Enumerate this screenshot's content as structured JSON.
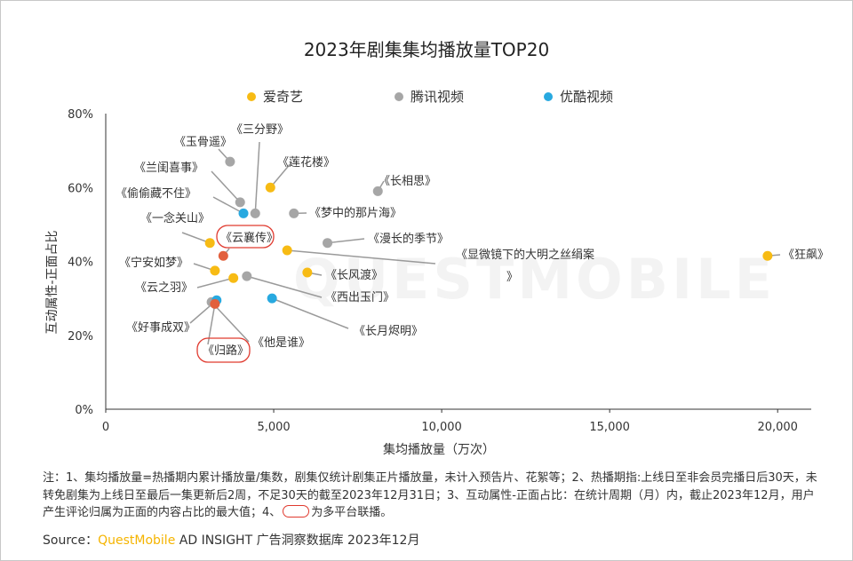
{
  "chart_data": {
    "type": "scatter",
    "title": "2023年剧集集均播放量TOP20",
    "xlabel": "集均播放量（万次）",
    "ylabel": "互动属性-正面占比",
    "xlim": [
      0,
      21000
    ],
    "ylim": [
      0,
      80
    ],
    "x_ticks": [
      "0",
      "5,000",
      "10,000",
      "15,000",
      "20,000"
    ],
    "y_ticks": [
      "0%",
      "20%",
      "40%",
      "60%",
      "80%"
    ],
    "legend_position": "top",
    "series": [
      {
        "name": "爱奇艺",
        "color": "#f7bb14",
        "points": [
          {
            "label": "《莲花楼》",
            "x": 4900,
            "y": 60
          },
          {
            "label": "《一念关山》",
            "x": 3100,
            "y": 45
          },
          {
            "label": "《宁安如梦》",
            "x": 3250,
            "y": 37.5
          },
          {
            "label": "《云之羽》",
            "x": 3800,
            "y": 35.5
          },
          {
            "label": "《显微镜下的大明之丝绢案》",
            "x": 5400,
            "y": 43
          },
          {
            "label": "《长风渡》",
            "x": 6000,
            "y": 37
          },
          {
            "label": "《狂飙》",
            "x": 19700,
            "y": 41.5
          }
        ]
      },
      {
        "name": "腾讯视频",
        "color": "#a6a6a6",
        "points": [
          {
            "label": "《玉骨遥》",
            "x": 3700,
            "y": 67
          },
          {
            "label": "《兰闺喜事》",
            "x": 4000,
            "y": 56
          },
          {
            "label": "《三分野》",
            "x": 4450,
            "y": 53
          },
          {
            "label": "《梦中的那片海》",
            "x": 5600,
            "y": 53
          },
          {
            "label": "《长相思》",
            "x": 8100,
            "y": 59
          },
          {
            "label": "《漫长的季节》",
            "x": 6600,
            "y": 45
          },
          {
            "label": "《西出玉门》",
            "x": 4200,
            "y": 36
          },
          {
            "label": "《他是谁》",
            "x": 3150,
            "y": 29
          }
        ]
      },
      {
        "name": "优酷视频",
        "color": "#28a9e0",
        "points": [
          {
            "label": "《偷偷藏不住》",
            "x": 4100,
            "y": 53
          },
          {
            "label": "《长月烬明》",
            "x": 4950,
            "y": 30
          },
          {
            "label": "《好事成双》",
            "x": 3300,
            "y": 29.5
          }
        ]
      },
      {
        "name": "多平台联播",
        "color": "#e2603d",
        "points": [
          {
            "label": "《云襄传》",
            "x": 3500,
            "y": 41.5
          },
          {
            "label": "《归路》",
            "x": 3250,
            "y": 28.5
          }
        ]
      }
    ],
    "legend": [
      "爱奇艺",
      "腾讯视频",
      "优酷视频"
    ]
  },
  "note": {
    "text": "注：1、集均播放量=热播期内累计播放量/集数，剧集仅统计剧集正片播放量，未计入预告片、花絮等；2、热播期指:上线日至非会员完播日后30天，未转免剧集为上线日至最后一集更新后2周，不足30天的截至2023年12月31日；3、互动属性-正面占比：在统计周期（月）内，截止2023年12月，用户产生评论归属为正面的内容占比的最大值；4、",
    "suffix": "为多平台联播。"
  },
  "source": {
    "prefix": "Source：",
    "brand": "QuestMobile",
    "rest": " AD INSIGHT 广告洞察数据库 2023年12月"
  },
  "watermark": "QUESTMOBILE"
}
